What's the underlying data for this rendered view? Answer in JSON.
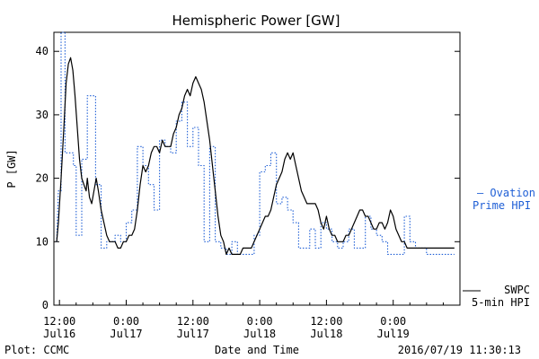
{
  "chart_data": {
    "type": "line",
    "title": "Hemispheric Power [GW]",
    "xlabel": "Date and Time",
    "ylabel": "P [GW]",
    "ylim": [
      0,
      43
    ],
    "xlim_hours": [
      -1,
      72
    ],
    "yticks": [
      0,
      10,
      20,
      30,
      40
    ],
    "xticks": [
      {
        "h": 0,
        "line1": "12:00",
        "line2": "Jul16"
      },
      {
        "h": 12,
        "line1": "0:00",
        "line2": "Jul17"
      },
      {
        "h": 24,
        "line1": "12:00",
        "line2": "Jul17"
      },
      {
        "h": 36,
        "line1": "0:00",
        "line2": "Jul18"
      },
      {
        "h": 48,
        "line1": "12:00",
        "line2": "Jul18"
      },
      {
        "h": 60,
        "line1": "0:00",
        "line2": "Jul19"
      }
    ],
    "grid": false,
    "legend": [
      {
        "lines": [
          "— Ovation",
          "Prime HPI"
        ],
        "color": "#1f5fd6",
        "style": "dotted"
      },
      {
        "lines": [
          "SWPC",
          "5-min HPI"
        ],
        "color": "#000000",
        "style": "solid"
      }
    ],
    "series": [
      {
        "name": "SWPC 5-min HPI",
        "color": "#000000",
        "style": "solid",
        "points": [
          [
            -0.5,
            10
          ],
          [
            -0.2,
            13
          ],
          [
            0.3,
            20
          ],
          [
            0.8,
            28
          ],
          [
            1.2,
            35
          ],
          [
            1.6,
            38
          ],
          [
            2.0,
            39
          ],
          [
            2.4,
            37
          ],
          [
            2.8,
            33
          ],
          [
            3.2,
            28
          ],
          [
            3.6,
            23
          ],
          [
            4.0,
            20
          ],
          [
            4.4,
            19
          ],
          [
            4.8,
            18
          ],
          [
            5.0,
            20
          ],
          [
            5.4,
            17
          ],
          [
            5.8,
            16
          ],
          [
            6.2,
            18
          ],
          [
            6.6,
            20
          ],
          [
            7.0,
            18
          ],
          [
            7.5,
            15
          ],
          [
            8.0,
            13
          ],
          [
            8.5,
            11
          ],
          [
            9.0,
            10
          ],
          [
            9.5,
            10
          ],
          [
            10.0,
            10
          ],
          [
            10.5,
            9
          ],
          [
            11.0,
            9
          ],
          [
            11.5,
            10
          ],
          [
            12.0,
            10
          ],
          [
            12.5,
            11
          ],
          [
            13.0,
            11
          ],
          [
            13.5,
            12
          ],
          [
            14.0,
            15
          ],
          [
            14.5,
            19
          ],
          [
            15.0,
            22
          ],
          [
            15.5,
            21
          ],
          [
            16.0,
            22
          ],
          [
            16.5,
            24
          ],
          [
            17.0,
            25
          ],
          [
            17.5,
            25
          ],
          [
            18.0,
            24
          ],
          [
            18.5,
            26
          ],
          [
            19.0,
            25
          ],
          [
            19.5,
            25
          ],
          [
            20.0,
            25
          ],
          [
            20.5,
            27
          ],
          [
            21.0,
            28
          ],
          [
            21.5,
            30
          ],
          [
            22.0,
            31
          ],
          [
            22.5,
            33
          ],
          [
            23.0,
            34
          ],
          [
            23.5,
            33
          ],
          [
            24.0,
            35
          ],
          [
            24.5,
            36
          ],
          [
            25.0,
            35
          ],
          [
            25.5,
            34
          ],
          [
            26.0,
            32
          ],
          [
            26.5,
            29
          ],
          [
            27.0,
            26
          ],
          [
            27.5,
            22
          ],
          [
            28.0,
            18
          ],
          [
            28.5,
            14
          ],
          [
            29.0,
            11
          ],
          [
            29.5,
            10
          ],
          [
            30.0,
            8
          ],
          [
            30.5,
            9
          ],
          [
            31.0,
            8
          ],
          [
            31.5,
            8
          ],
          [
            32.0,
            8
          ],
          [
            32.5,
            8
          ],
          [
            33.0,
            9
          ],
          [
            33.5,
            9
          ],
          [
            34.0,
            9
          ],
          [
            34.5,
            9
          ],
          [
            35.0,
            10
          ],
          [
            35.5,
            11
          ],
          [
            36.0,
            12
          ],
          [
            36.5,
            13
          ],
          [
            37.0,
            14
          ],
          [
            37.5,
            14
          ],
          [
            38.0,
            15
          ],
          [
            38.5,
            17
          ],
          [
            39.0,
            19
          ],
          [
            39.5,
            20
          ],
          [
            40.0,
            21
          ],
          [
            40.5,
            23
          ],
          [
            41.0,
            24
          ],
          [
            41.5,
            23
          ],
          [
            42.0,
            24
          ],
          [
            42.5,
            22
          ],
          [
            43.0,
            20
          ],
          [
            43.5,
            18
          ],
          [
            44.0,
            17
          ],
          [
            44.5,
            16
          ],
          [
            45.0,
            16
          ],
          [
            45.5,
            16
          ],
          [
            46.0,
            16
          ],
          [
            46.5,
            15
          ],
          [
            47.0,
            13
          ],
          [
            47.5,
            12
          ],
          [
            48.0,
            14
          ],
          [
            48.5,
            12
          ],
          [
            49.0,
            11
          ],
          [
            49.5,
            11
          ],
          [
            50.0,
            10
          ],
          [
            50.5,
            10
          ],
          [
            51.0,
            10
          ],
          [
            51.5,
            11
          ],
          [
            52.0,
            11
          ],
          [
            52.5,
            12
          ],
          [
            53.0,
            13
          ],
          [
            53.5,
            14
          ],
          [
            54.0,
            15
          ],
          [
            54.5,
            15
          ],
          [
            55.0,
            14
          ],
          [
            55.5,
            14
          ],
          [
            56.0,
            13
          ],
          [
            56.5,
            12
          ],
          [
            57.0,
            12
          ],
          [
            57.5,
            13
          ],
          [
            58.0,
            13
          ],
          [
            58.5,
            12
          ],
          [
            59.0,
            13
          ],
          [
            59.5,
            15
          ],
          [
            60.0,
            14
          ],
          [
            60.5,
            12
          ],
          [
            61.0,
            11
          ],
          [
            61.5,
            10
          ],
          [
            62.0,
            10
          ],
          [
            62.5,
            9
          ],
          [
            63.0,
            9
          ],
          [
            63.5,
            9
          ],
          [
            64.0,
            9
          ],
          [
            64.5,
            9
          ],
          [
            65.0,
            9
          ],
          [
            66.0,
            9
          ],
          [
            67.0,
            9
          ],
          [
            68.0,
            9
          ],
          [
            69.0,
            9
          ],
          [
            70.0,
            9
          ],
          [
            71.0,
            9
          ]
        ]
      },
      {
        "name": "Ovation Prime HPI",
        "color": "#1f5fd6",
        "style": "dotted",
        "points": [
          [
            -0.5,
            10
          ],
          [
            -0.2,
            18
          ],
          [
            0.3,
            18
          ],
          [
            0.3,
            43
          ],
          [
            1.0,
            43
          ],
          [
            1.0,
            24
          ],
          [
            2.5,
            24
          ],
          [
            2.5,
            22
          ],
          [
            3.0,
            22
          ],
          [
            3.0,
            11
          ],
          [
            4.0,
            11
          ],
          [
            4.0,
            23
          ],
          [
            5.0,
            23
          ],
          [
            5.0,
            33
          ],
          [
            6.5,
            33
          ],
          [
            6.5,
            19
          ],
          [
            7.5,
            19
          ],
          [
            7.5,
            9
          ],
          [
            8.5,
            9
          ],
          [
            8.5,
            10
          ],
          [
            10.0,
            10
          ],
          [
            10.0,
            11
          ],
          [
            11.0,
            11
          ],
          [
            11.0,
            10
          ],
          [
            12.0,
            10
          ],
          [
            12.0,
            13
          ],
          [
            13.0,
            13
          ],
          [
            13.0,
            15
          ],
          [
            14.0,
            15
          ],
          [
            14.0,
            25
          ],
          [
            15.0,
            25
          ],
          [
            15.0,
            22
          ],
          [
            16.0,
            22
          ],
          [
            16.0,
            19
          ],
          [
            17.0,
            19
          ],
          [
            17.0,
            15
          ],
          [
            18.0,
            15
          ],
          [
            18.0,
            26
          ],
          [
            19.0,
            26
          ],
          [
            19.0,
            25
          ],
          [
            20.0,
            25
          ],
          [
            20.0,
            24
          ],
          [
            21.0,
            24
          ],
          [
            21.0,
            29
          ],
          [
            22.0,
            29
          ],
          [
            22.0,
            32
          ],
          [
            23.0,
            32
          ],
          [
            23.0,
            25
          ],
          [
            24.0,
            25
          ],
          [
            24.0,
            28
          ],
          [
            25.0,
            28
          ],
          [
            25.0,
            22
          ],
          [
            26.0,
            22
          ],
          [
            26.0,
            10
          ],
          [
            27.0,
            10
          ],
          [
            27.0,
            25
          ],
          [
            28.0,
            25
          ],
          [
            28.0,
            10
          ],
          [
            29.0,
            10
          ],
          [
            29.0,
            9
          ],
          [
            30.0,
            9
          ],
          [
            30.0,
            8
          ],
          [
            31.0,
            8
          ],
          [
            31.0,
            10
          ],
          [
            32.0,
            10
          ],
          [
            32.0,
            8
          ],
          [
            35.0,
            8
          ],
          [
            35.0,
            11
          ],
          [
            36.0,
            11
          ],
          [
            36.0,
            21
          ],
          [
            37.0,
            21
          ],
          [
            37.0,
            22
          ],
          [
            38.0,
            22
          ],
          [
            38.0,
            24
          ],
          [
            39.0,
            24
          ],
          [
            39.0,
            16
          ],
          [
            40.0,
            16
          ],
          [
            40.0,
            17
          ],
          [
            41.0,
            17
          ],
          [
            41.0,
            15
          ],
          [
            42.0,
            15
          ],
          [
            42.0,
            13
          ],
          [
            43.0,
            13
          ],
          [
            43.0,
            9
          ],
          [
            45.0,
            9
          ],
          [
            45.0,
            12
          ],
          [
            46.0,
            12
          ],
          [
            46.0,
            9
          ],
          [
            47.0,
            9
          ],
          [
            47.0,
            13
          ],
          [
            48.0,
            13
          ],
          [
            48.0,
            12
          ],
          [
            49.0,
            12
          ],
          [
            49.0,
            10
          ],
          [
            50.0,
            10
          ],
          [
            50.0,
            9
          ],
          [
            51.0,
            9
          ],
          [
            51.0,
            10
          ],
          [
            52.0,
            10
          ],
          [
            52.0,
            12
          ],
          [
            53.0,
            12
          ],
          [
            53.0,
            9
          ],
          [
            55.0,
            9
          ],
          [
            55.0,
            14
          ],
          [
            56.0,
            14
          ],
          [
            56.0,
            12
          ],
          [
            57.0,
            12
          ],
          [
            57.0,
            11
          ],
          [
            58.0,
            11
          ],
          [
            58.0,
            10
          ],
          [
            59.0,
            10
          ],
          [
            59.0,
            8
          ],
          [
            62.0,
            8
          ],
          [
            62.0,
            14
          ],
          [
            63.0,
            14
          ],
          [
            63.0,
            10
          ],
          [
            64.0,
            10
          ],
          [
            64.0,
            9
          ],
          [
            66.0,
            9
          ],
          [
            66.0,
            8
          ],
          [
            71.0,
            8
          ]
        ]
      }
    ]
  },
  "footer": {
    "plot_credit": "Plot: CCMC",
    "timestamp": "2016/07/19 11:30:13"
  }
}
